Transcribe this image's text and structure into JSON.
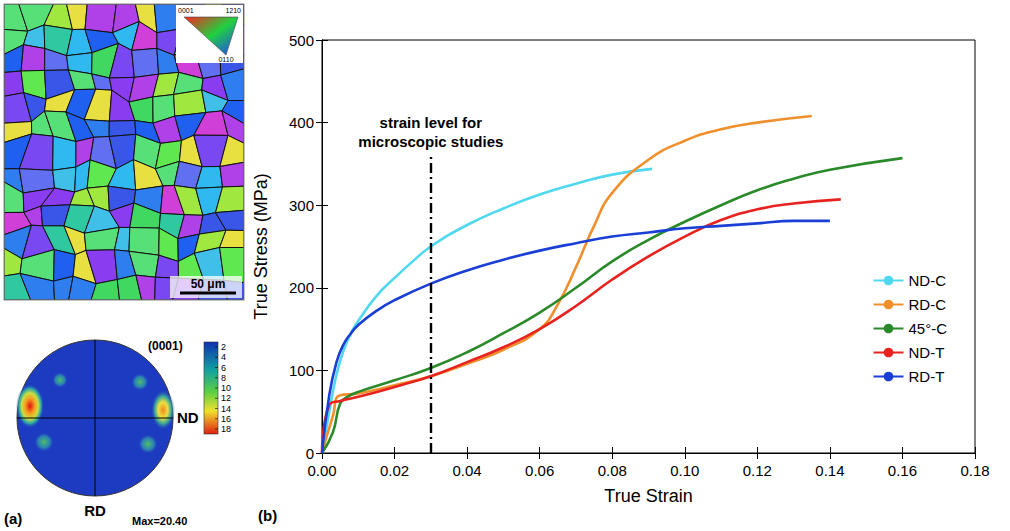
{
  "chart_data": {
    "type": "line",
    "panel_label": "(b)",
    "x_label": "True Strain",
    "y_label": "True Stress (MPa)",
    "xlim": [
      0,
      0.18
    ],
    "xticks": [
      {
        "value": 0,
        "label": "0.00"
      },
      {
        "value": 0.02,
        "label": "0.02"
      },
      {
        "value": 0.04,
        "label": "0.04"
      },
      {
        "value": 0.06,
        "label": "0.06"
      },
      {
        "value": 0.08,
        "label": "0.08"
      },
      {
        "value": 0.1,
        "label": "0.10"
      },
      {
        "value": 0.12,
        "label": "0.12"
      },
      {
        "value": 0.14,
        "label": "0.14"
      },
      {
        "value": 0.16,
        "label": "0.16"
      },
      {
        "value": 0.18,
        "label": "0.18"
      }
    ],
    "ylim": [
      0,
      500
    ],
    "yticks": [
      0,
      100,
      200,
      300,
      400,
      500
    ],
    "grid": false,
    "legend": "right",
    "annotations": [
      {
        "text": "strain level for\nmicroscopic studies",
        "x": 0.03,
        "y": 360,
        "line_style": "dashdot"
      }
    ],
    "series": [
      {
        "name": "ND-C",
        "color": "#4fd8ef",
        "line_style": "solid",
        "x": [
          0,
          0.002,
          0.004,
          0.006,
          0.008,
          0.01,
          0.015,
          0.02,
          0.025,
          0.03,
          0.04,
          0.05,
          0.06,
          0.07,
          0.08,
          0.091
        ],
        "values": [
          0,
          50,
          95,
          125,
          145,
          160,
          190,
          212,
          232,
          250,
          276,
          296,
          313,
          326,
          337,
          344
        ]
      },
      {
        "name": "RD-C",
        "color": "#f0902c",
        "line_style": "solid",
        "x": [
          0,
          0.003,
          0.005,
          0.01,
          0.02,
          0.03,
          0.04,
          0.05,
          0.06,
          0.065,
          0.07,
          0.075,
          0.08,
          0.09,
          0.1,
          0.11,
          0.12,
          0.135
        ],
        "values": [
          0,
          45,
          70,
          72,
          82,
          93,
          108,
          125,
          150,
          180,
          225,
          275,
          315,
          355,
          378,
          392,
          400,
          408
        ]
      },
      {
        "name": "45°-C",
        "color": "#2a8a2a",
        "line_style": "solid",
        "x": [
          0,
          0.003,
          0.005,
          0.007,
          0.01,
          0.02,
          0.03,
          0.04,
          0.05,
          0.06,
          0.07,
          0.08,
          0.09,
          0.1,
          0.11,
          0.12,
          0.13,
          0.14,
          0.16
        ],
        "values": [
          0,
          25,
          60,
          68,
          74,
          88,
          103,
          122,
          145,
          170,
          200,
          232,
          258,
          280,
          300,
          318,
          332,
          343,
          357
        ]
      },
      {
        "name": "ND-T",
        "color": "#e8221e",
        "line_style": "solid",
        "x": [
          0,
          0.002,
          0.005,
          0.01,
          0.02,
          0.03,
          0.04,
          0.05,
          0.06,
          0.07,
          0.08,
          0.09,
          0.1,
          0.11,
          0.12,
          0.13,
          0.143
        ],
        "values": [
          0,
          58,
          63,
          68,
          80,
          93,
          110,
          128,
          150,
          178,
          210,
          238,
          262,
          282,
          295,
          302,
          307
        ]
      },
      {
        "name": "RD-T",
        "color": "#1a3fd6",
        "line_style": "solid",
        "x": [
          0,
          0.002,
          0.004,
          0.006,
          0.008,
          0.01,
          0.015,
          0.02,
          0.03,
          0.04,
          0.05,
          0.06,
          0.07,
          0.08,
          0.09,
          0.1,
          0.11,
          0.12,
          0.13,
          0.14
        ],
        "values": [
          0,
          70,
          110,
          132,
          145,
          155,
          172,
          185,
          205,
          221,
          234,
          245,
          254,
          262,
          267,
          272,
          275,
          278,
          281,
          281
        ]
      }
    ]
  },
  "panel_a": {
    "label": "(a)",
    "scale_bar": "50 μm",
    "ipf_key": [
      "0001",
      "1210",
      "0110"
    ],
    "pole_figure": {
      "title": "(0001)",
      "horizontal_label": "ND",
      "vertical_label": "RD",
      "max": "Max=20.40",
      "colorbar_ticks": [
        2,
        4,
        6,
        8,
        10,
        12,
        14,
        16,
        18
      ]
    }
  }
}
